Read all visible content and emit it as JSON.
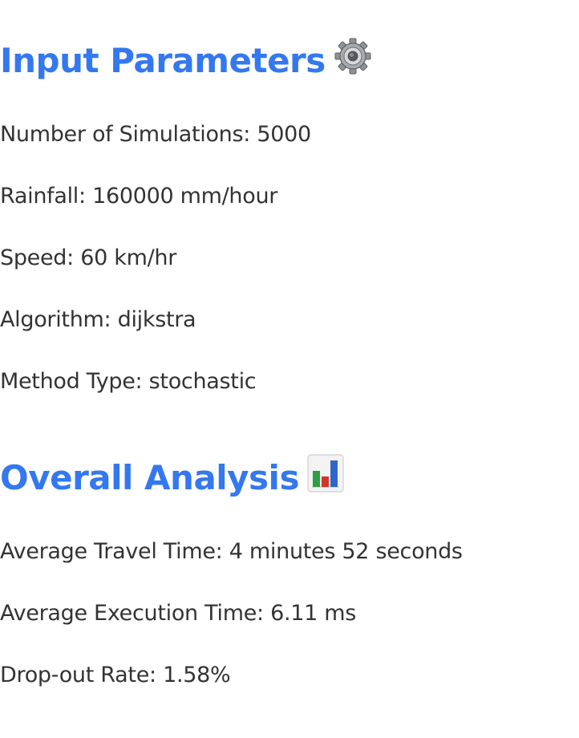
{
  "input_parameters": {
    "heading": "Input Parameters",
    "heading_icon": "gear-icon",
    "items": [
      {
        "label": "Number of Simulations: ",
        "value": "5000"
      },
      {
        "label": "Rainfall: ",
        "value": "160000 mm/hour"
      },
      {
        "label": "Speed: ",
        "value": "60 km/hr"
      },
      {
        "label": "Algorithm: ",
        "value": "dijkstra"
      },
      {
        "label": "Method Type: ",
        "value": "stochastic"
      }
    ]
  },
  "overall_analysis": {
    "heading": "Overall Analysis",
    "heading_icon": "bar-chart-icon",
    "items": [
      {
        "label": "Average Travel Time: ",
        "value": "4 minutes 52 seconds"
      },
      {
        "label": "Average Execution Time: ",
        "value": "6.11 ms"
      },
      {
        "label": "Drop-out Rate: ",
        "value": "1.58%"
      }
    ]
  },
  "colors": {
    "heading": "#3478ef",
    "text": "#333333",
    "background": "#ffffff"
  }
}
